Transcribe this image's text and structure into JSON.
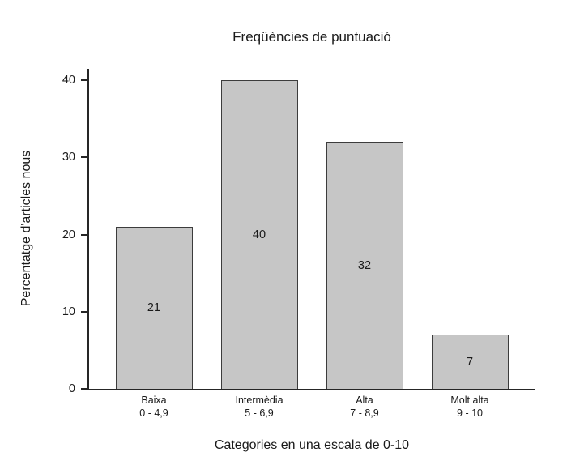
{
  "chart_data": {
    "type": "bar",
    "title": "Freqüències de puntuació",
    "xlabel": "Categories en una escala de 0-10",
    "ylabel": "Percentatge d'articles nous",
    "categories": [
      "Baixa",
      "Intermèdia",
      "Alta",
      "Molt alta"
    ],
    "category_sublabels": [
      "0 - 4,9",
      "5 - 6,9",
      "7 - 8,9",
      "9 - 10"
    ],
    "values": [
      21,
      40,
      32,
      7
    ],
    "ylim": [
      0,
      40
    ],
    "yticks": [
      0,
      10,
      20,
      30,
      40
    ],
    "grid": false,
    "legend": "none",
    "bar_color": "#c6c6c6",
    "bar_border_color": "#3c3c3c",
    "axis_color": "#262626",
    "text_color": "#1a1a1a",
    "background_color": "#ffffff"
  }
}
